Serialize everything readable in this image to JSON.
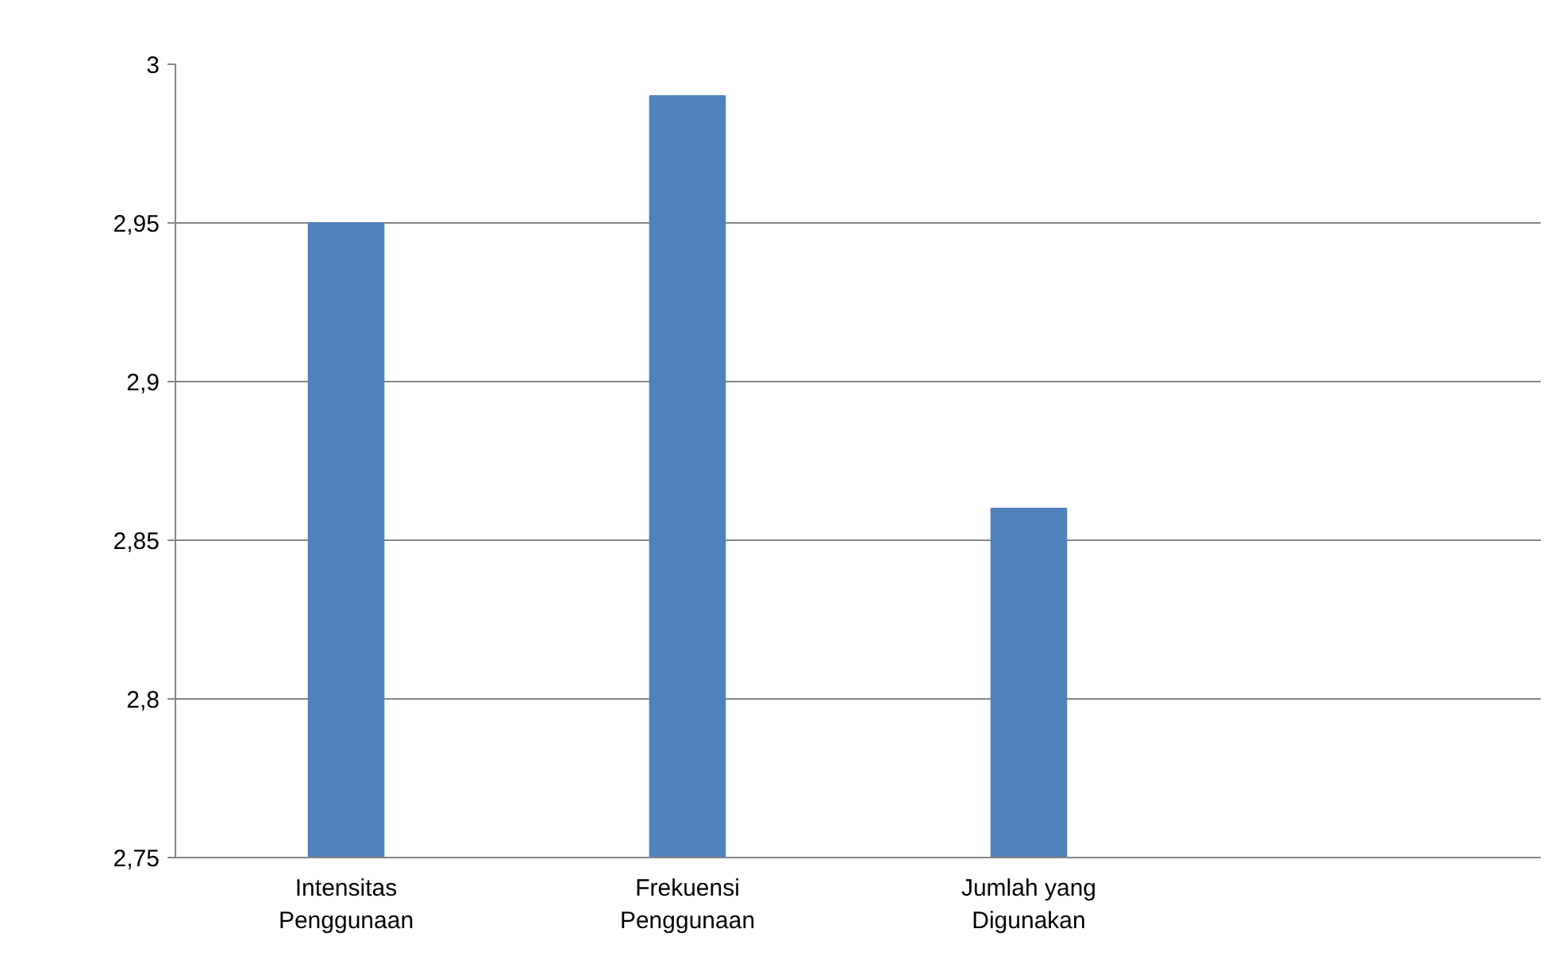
{
  "chart_data": {
    "type": "bar",
    "categories": [
      "Intensitas Penggunaan",
      "Frekuensi Penggunaan",
      "Jumlah yang Digunakan",
      null
    ],
    "values": [
      2.95,
      2.99,
      2.86,
      null
    ],
    "color": "#4f81bd",
    "ylim": [
      2.75,
      3
    ],
    "yticks": [
      {
        "value": 2.75,
        "label": "2,75"
      },
      {
        "value": 2.8,
        "label": "2,8"
      },
      {
        "value": 2.85,
        "label": "2,85"
      },
      {
        "value": 2.9,
        "label": "2,9"
      },
      {
        "value": 2.95,
        "label": "2,95"
      },
      {
        "value": 3,
        "label": "3"
      }
    ],
    "grid": "y"
  }
}
